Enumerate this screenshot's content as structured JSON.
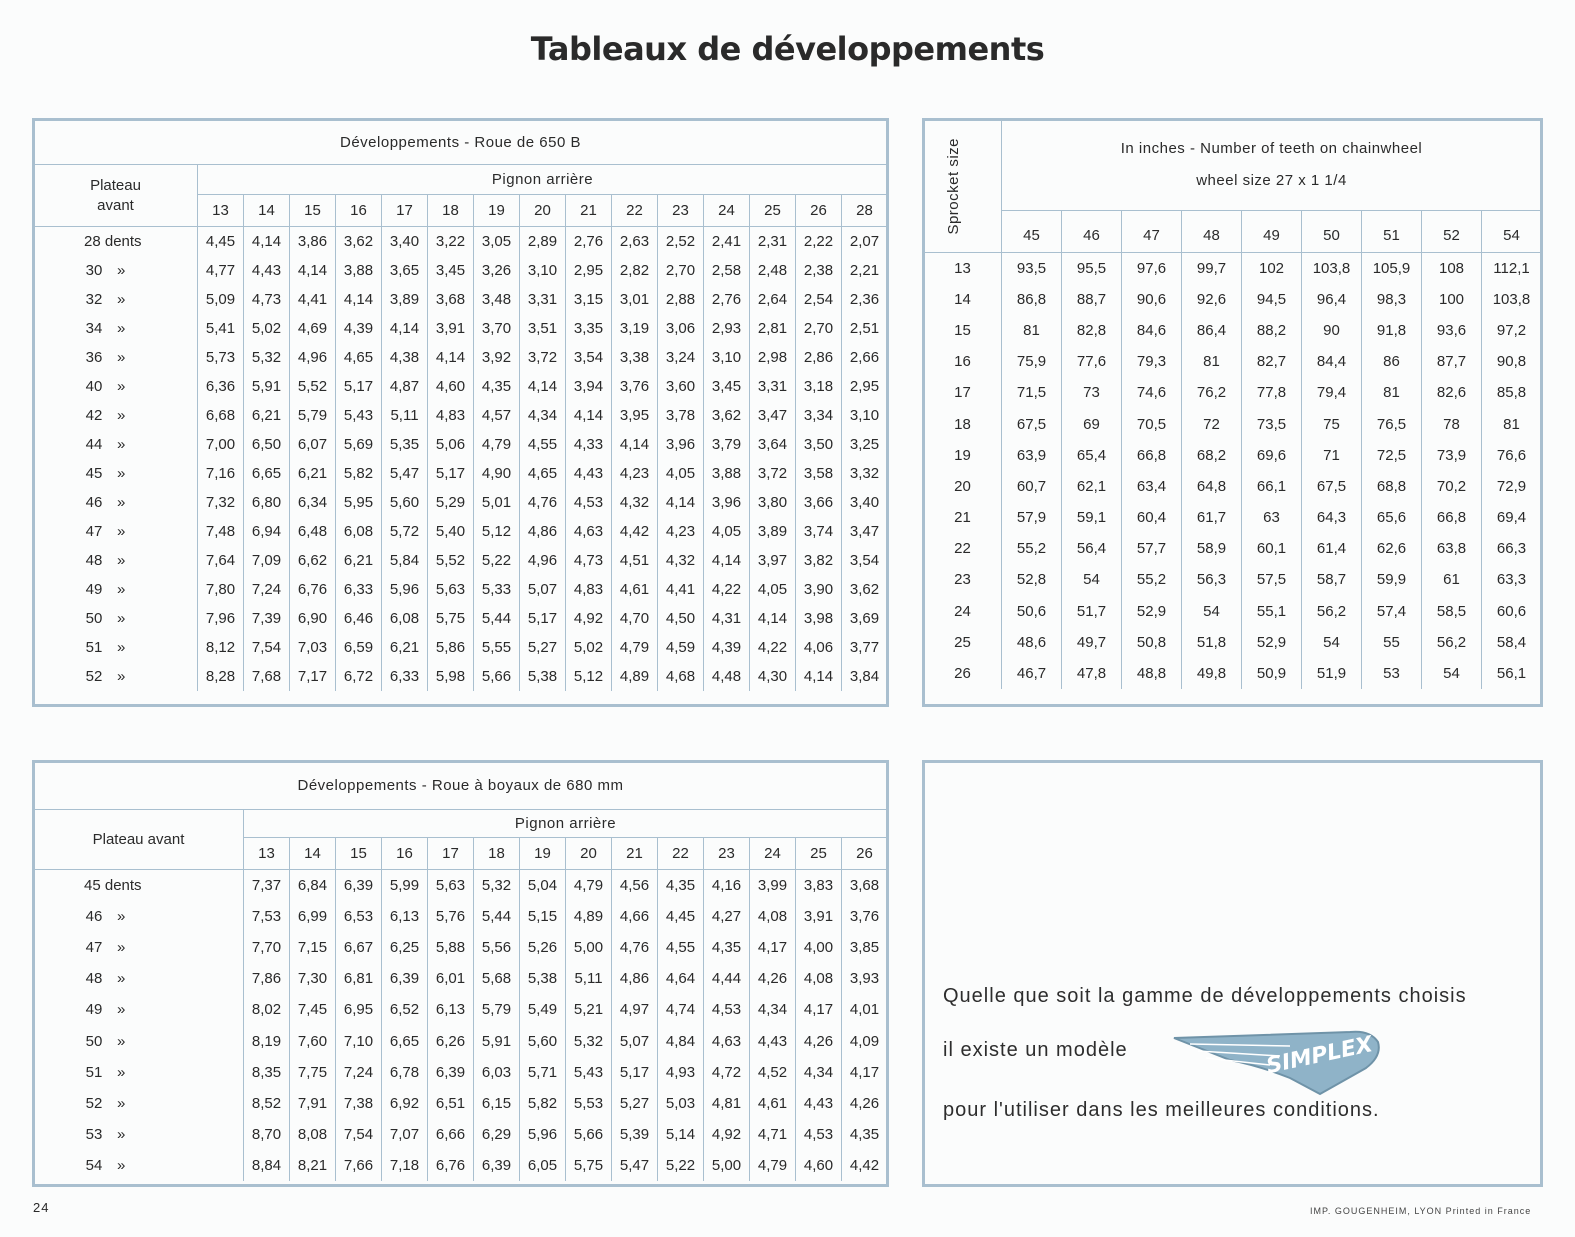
{
  "title": "Tableaux de développements",
  "table1": {
    "caption": "Développements - Roue de 650 B",
    "row_header": "Plateau avant",
    "col_group_header": "Pignon arrière",
    "columns": [
      "13",
      "14",
      "15",
      "16",
      "17",
      "18",
      "19",
      "20",
      "21",
      "22",
      "23",
      "24",
      "25",
      "26",
      "28"
    ],
    "rows": [
      {
        "label": "28 dents",
        "values": [
          "4,45",
          "4,14",
          "3,86",
          "3,62",
          "3,40",
          "3,22",
          "3,05",
          "2,89",
          "2,76",
          "2,63",
          "2,52",
          "2,41",
          "2,31",
          "2,22",
          "2,07"
        ]
      },
      {
        "label": "30",
        "values": [
          "4,77",
          "4,43",
          "4,14",
          "3,88",
          "3,65",
          "3,45",
          "3,26",
          "3,10",
          "2,95",
          "2,82",
          "2,70",
          "2,58",
          "2,48",
          "2,38",
          "2,21"
        ]
      },
      {
        "label": "32",
        "values": [
          "5,09",
          "4,73",
          "4,41",
          "4,14",
          "3,89",
          "3,68",
          "3,48",
          "3,31",
          "3,15",
          "3,01",
          "2,88",
          "2,76",
          "2,64",
          "2,54",
          "2,36"
        ]
      },
      {
        "label": "34",
        "values": [
          "5,41",
          "5,02",
          "4,69",
          "4,39",
          "4,14",
          "3,91",
          "3,70",
          "3,51",
          "3,35",
          "3,19",
          "3,06",
          "2,93",
          "2,81",
          "2,70",
          "2,51"
        ]
      },
      {
        "label": "36",
        "values": [
          "5,73",
          "5,32",
          "4,96",
          "4,65",
          "4,38",
          "4,14",
          "3,92",
          "3,72",
          "3,54",
          "3,38",
          "3,24",
          "3,10",
          "2,98",
          "2,86",
          "2,66"
        ]
      },
      {
        "label": "40",
        "values": [
          "6,36",
          "5,91",
          "5,52",
          "5,17",
          "4,87",
          "4,60",
          "4,35",
          "4,14",
          "3,94",
          "3,76",
          "3,60",
          "3,45",
          "3,31",
          "3,18",
          "2,95"
        ]
      },
      {
        "label": "42",
        "values": [
          "6,68",
          "6,21",
          "5,79",
          "5,43",
          "5,11",
          "4,83",
          "4,57",
          "4,34",
          "4,14",
          "3,95",
          "3,78",
          "3,62",
          "3,47",
          "3,34",
          "3,10"
        ]
      },
      {
        "label": "44",
        "values": [
          "7,00",
          "6,50",
          "6,07",
          "5,69",
          "5,35",
          "5,06",
          "4,79",
          "4,55",
          "4,33",
          "4,14",
          "3,96",
          "3,79",
          "3,64",
          "3,50",
          "3,25"
        ]
      },
      {
        "label": "45",
        "values": [
          "7,16",
          "6,65",
          "6,21",
          "5,82",
          "5,47",
          "5,17",
          "4,90",
          "4,65",
          "4,43",
          "4,23",
          "4,05",
          "3,88",
          "3,72",
          "3,58",
          "3,32"
        ]
      },
      {
        "label": "46",
        "values": [
          "7,32",
          "6,80",
          "6,34",
          "5,95",
          "5,60",
          "5,29",
          "5,01",
          "4,76",
          "4,53",
          "4,32",
          "4,14",
          "3,96",
          "3,80",
          "3,66",
          "3,40"
        ]
      },
      {
        "label": "47",
        "values": [
          "7,48",
          "6,94",
          "6,48",
          "6,08",
          "5,72",
          "5,40",
          "5,12",
          "4,86",
          "4,63",
          "4,42",
          "4,23",
          "4,05",
          "3,89",
          "3,74",
          "3,47"
        ]
      },
      {
        "label": "48",
        "values": [
          "7,64",
          "7,09",
          "6,62",
          "6,21",
          "5,84",
          "5,52",
          "5,22",
          "4,96",
          "4,73",
          "4,51",
          "4,32",
          "4,14",
          "3,97",
          "3,82",
          "3,54"
        ]
      },
      {
        "label": "49",
        "values": [
          "7,80",
          "7,24",
          "6,76",
          "6,33",
          "5,96",
          "5,63",
          "5,33",
          "5,07",
          "4,83",
          "4,61",
          "4,41",
          "4,22",
          "4,05",
          "3,90",
          "3,62"
        ]
      },
      {
        "label": "50",
        "values": [
          "7,96",
          "7,39",
          "6,90",
          "6,46",
          "6,08",
          "5,75",
          "5,44",
          "5,17",
          "4,92",
          "4,70",
          "4,50",
          "4,31",
          "4,14",
          "3,98",
          "3,69"
        ]
      },
      {
        "label": "51",
        "values": [
          "8,12",
          "7,54",
          "7,03",
          "6,59",
          "6,21",
          "5,86",
          "5,55",
          "5,27",
          "5,02",
          "4,79",
          "4,59",
          "4,39",
          "4,22",
          "4,06",
          "3,77"
        ]
      },
      {
        "label": "52",
        "values": [
          "8,28",
          "7,68",
          "7,17",
          "6,72",
          "6,33",
          "5,98",
          "5,66",
          "5,38",
          "5,12",
          "4,89",
          "4,68",
          "4,48",
          "4,30",
          "4,14",
          "3,84"
        ]
      }
    ]
  },
  "table2": {
    "corner_header": "Sprocket size",
    "caption_line1": "In inches - Number of teeth on chainwheel",
    "caption_line2": "wheel size 27 x 1 1/4",
    "columns": [
      "45",
      "46",
      "47",
      "48",
      "49",
      "50",
      "51",
      "52",
      "54"
    ],
    "rows": [
      {
        "label": "13",
        "values": [
          "93,5",
          "95,5",
          "97,6",
          "99,7",
          "102",
          "103,8",
          "105,9",
          "108",
          "112,1"
        ]
      },
      {
        "label": "14",
        "values": [
          "86,8",
          "88,7",
          "90,6",
          "92,6",
          "94,5",
          "96,4",
          "98,3",
          "100",
          "103,8"
        ]
      },
      {
        "label": "15",
        "values": [
          "81",
          "82,8",
          "84,6",
          "86,4",
          "88,2",
          "90",
          "91,8",
          "93,6",
          "97,2"
        ]
      },
      {
        "label": "16",
        "values": [
          "75,9",
          "77,6",
          "79,3",
          "81",
          "82,7",
          "84,4",
          "86",
          "87,7",
          "90,8"
        ]
      },
      {
        "label": "17",
        "values": [
          "71,5",
          "73",
          "74,6",
          "76,2",
          "77,8",
          "79,4",
          "81",
          "82,6",
          "85,8"
        ]
      },
      {
        "label": "18",
        "values": [
          "67,5",
          "69",
          "70,5",
          "72",
          "73,5",
          "75",
          "76,5",
          "78",
          "81"
        ]
      },
      {
        "label": "19",
        "values": [
          "63,9",
          "65,4",
          "66,8",
          "68,2",
          "69,6",
          "71",
          "72,5",
          "73,9",
          "76,6"
        ]
      },
      {
        "label": "20",
        "values": [
          "60,7",
          "62,1",
          "63,4",
          "64,8",
          "66,1",
          "67,5",
          "68,8",
          "70,2",
          "72,9"
        ]
      },
      {
        "label": "21",
        "values": [
          "57,9",
          "59,1",
          "60,4",
          "61,7",
          "63",
          "64,3",
          "65,6",
          "66,8",
          "69,4"
        ]
      },
      {
        "label": "22",
        "values": [
          "55,2",
          "56,4",
          "57,7",
          "58,9",
          "60,1",
          "61,4",
          "62,6",
          "63,8",
          "66,3"
        ]
      },
      {
        "label": "23",
        "values": [
          "52,8",
          "54",
          "55,2",
          "56,3",
          "57,5",
          "58,7",
          "59,9",
          "61",
          "63,3"
        ]
      },
      {
        "label": "24",
        "values": [
          "50,6",
          "51,7",
          "52,9",
          "54",
          "55,1",
          "56,2",
          "57,4",
          "58,5",
          "60,6"
        ]
      },
      {
        "label": "25",
        "values": [
          "48,6",
          "49,7",
          "50,8",
          "51,8",
          "52,9",
          "54",
          "55",
          "56,2",
          "58,4"
        ]
      },
      {
        "label": "26",
        "values": [
          "46,7",
          "47,8",
          "48,8",
          "49,8",
          "50,9",
          "51,9",
          "53",
          "54",
          "56,1"
        ]
      }
    ]
  },
  "table3": {
    "caption": "Développements - Roue à boyaux de 680 mm",
    "row_header": "Plateau avant",
    "col_group_header": "Pignon arrière",
    "columns": [
      "13",
      "14",
      "15",
      "16",
      "17",
      "18",
      "19",
      "20",
      "21",
      "22",
      "23",
      "24",
      "25",
      "26"
    ],
    "rows": [
      {
        "label": "45 dents",
        "values": [
          "7,37",
          "6,84",
          "6,39",
          "5,99",
          "5,63",
          "5,32",
          "5,04",
          "4,79",
          "4,56",
          "4,35",
          "4,16",
          "3,99",
          "3,83",
          "3,68"
        ]
      },
      {
        "label": "46",
        "values": [
          "7,53",
          "6,99",
          "6,53",
          "6,13",
          "5,76",
          "5,44",
          "5,15",
          "4,89",
          "4,66",
          "4,45",
          "4,27",
          "4,08",
          "3,91",
          "3,76"
        ]
      },
      {
        "label": "47",
        "values": [
          "7,70",
          "7,15",
          "6,67",
          "6,25",
          "5,88",
          "5,56",
          "5,26",
          "5,00",
          "4,76",
          "4,55",
          "4,35",
          "4,17",
          "4,00",
          "3,85"
        ]
      },
      {
        "label": "48",
        "values": [
          "7,86",
          "7,30",
          "6,81",
          "6,39",
          "6,01",
          "5,68",
          "5,38",
          "5,11",
          "4,86",
          "4,64",
          "4,44",
          "4,26",
          "4,08",
          "3,93"
        ]
      },
      {
        "label": "49",
        "values": [
          "8,02",
          "7,45",
          "6,95",
          "6,52",
          "6,13",
          "5,79",
          "5,49",
          "5,21",
          "4,97",
          "4,74",
          "4,53",
          "4,34",
          "4,17",
          "4,01"
        ]
      },
      {
        "label": "50",
        "values": [
          "8,19",
          "7,60",
          "7,10",
          "6,65",
          "6,26",
          "5,91",
          "5,60",
          "5,32",
          "5,07",
          "4,84",
          "4,63",
          "4,43",
          "4,26",
          "4,09"
        ]
      },
      {
        "label": "51",
        "values": [
          "8,35",
          "7,75",
          "7,24",
          "6,78",
          "6,39",
          "6,03",
          "5,71",
          "5,43",
          "5,17",
          "4,93",
          "4,72",
          "4,52",
          "4,34",
          "4,17"
        ]
      },
      {
        "label": "52",
        "values": [
          "8,52",
          "7,91",
          "7,38",
          "6,92",
          "6,51",
          "6,15",
          "5,82",
          "5,53",
          "5,27",
          "5,03",
          "4,81",
          "4,61",
          "4,43",
          "4,26"
        ]
      },
      {
        "label": "53",
        "values": [
          "8,70",
          "8,08",
          "7,54",
          "7,07",
          "6,66",
          "6,29",
          "5,96",
          "5,66",
          "5,39",
          "5,14",
          "4,92",
          "4,71",
          "4,53",
          "4,35"
        ]
      },
      {
        "label": "54",
        "values": [
          "8,84",
          "8,21",
          "7,66",
          "7,18",
          "6,76",
          "6,39",
          "6,05",
          "5,75",
          "5,47",
          "5,22",
          "5,00",
          "4,79",
          "4,60",
          "4,42"
        ]
      }
    ]
  },
  "ditto_mark": "»",
  "promo": {
    "line1": "Quelle que soit la gamme de développements choisis",
    "line2": "il existe un modèle",
    "line3": "pour l'utiliser dans les meilleures conditions.",
    "logo_text": "SIMPLEX",
    "logo_color": "#8fb3c8"
  },
  "page_number": "24",
  "printer_note": "IMP. GOUGENHEIM, LYON  Printed in France"
}
